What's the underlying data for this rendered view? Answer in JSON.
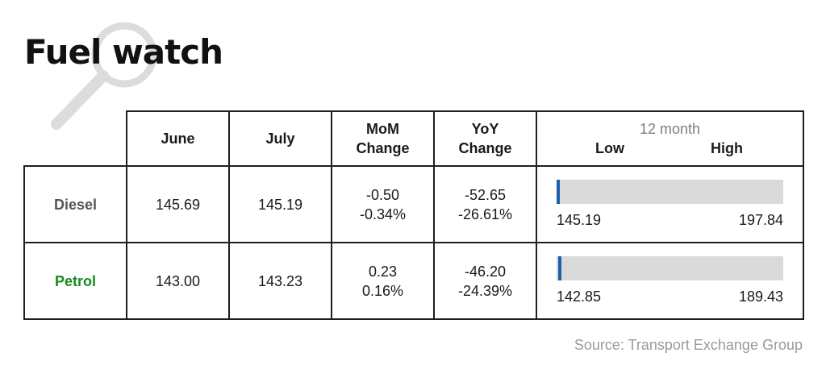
{
  "title": "Fuel watch",
  "colors": {
    "diesel_label": "#555555",
    "petrol_label": "#1a8a1a",
    "range_track": "#dadada",
    "range_marker": "#1f5ea8",
    "source_text": "#9a9a9a",
    "border": "#1e1e1e"
  },
  "icons": {
    "title_decoration": "magnifying-glass-icon"
  },
  "source": "Source: Transport Exchange Group",
  "chart_data": {
    "type": "table",
    "headers": {
      "june": "June",
      "july": "July",
      "mom_line1": "MoM",
      "mom_line2": "Change",
      "yoy_line1": "YoY",
      "yoy_line2": "Change",
      "range_title": "12 month",
      "range_low": "Low",
      "range_high": "High"
    },
    "rows": [
      {
        "fuel": "Diesel",
        "june": "145.69",
        "july": "145.19",
        "mom_abs": "-0.50",
        "mom_pct": "-0.34%",
        "yoy_abs": "-52.65",
        "yoy_pct": "-26.61%",
        "low": "145.19",
        "high": "197.84",
        "current": 145.19
      },
      {
        "fuel": "Petrol",
        "june": "143.00",
        "july": "143.23",
        "mom_abs": "0.23",
        "mom_pct": "0.16%",
        "yoy_abs": "-46.20",
        "yoy_pct": "-24.39%",
        "low": "142.85",
        "high": "189.43",
        "current": 143.23
      }
    ]
  }
}
